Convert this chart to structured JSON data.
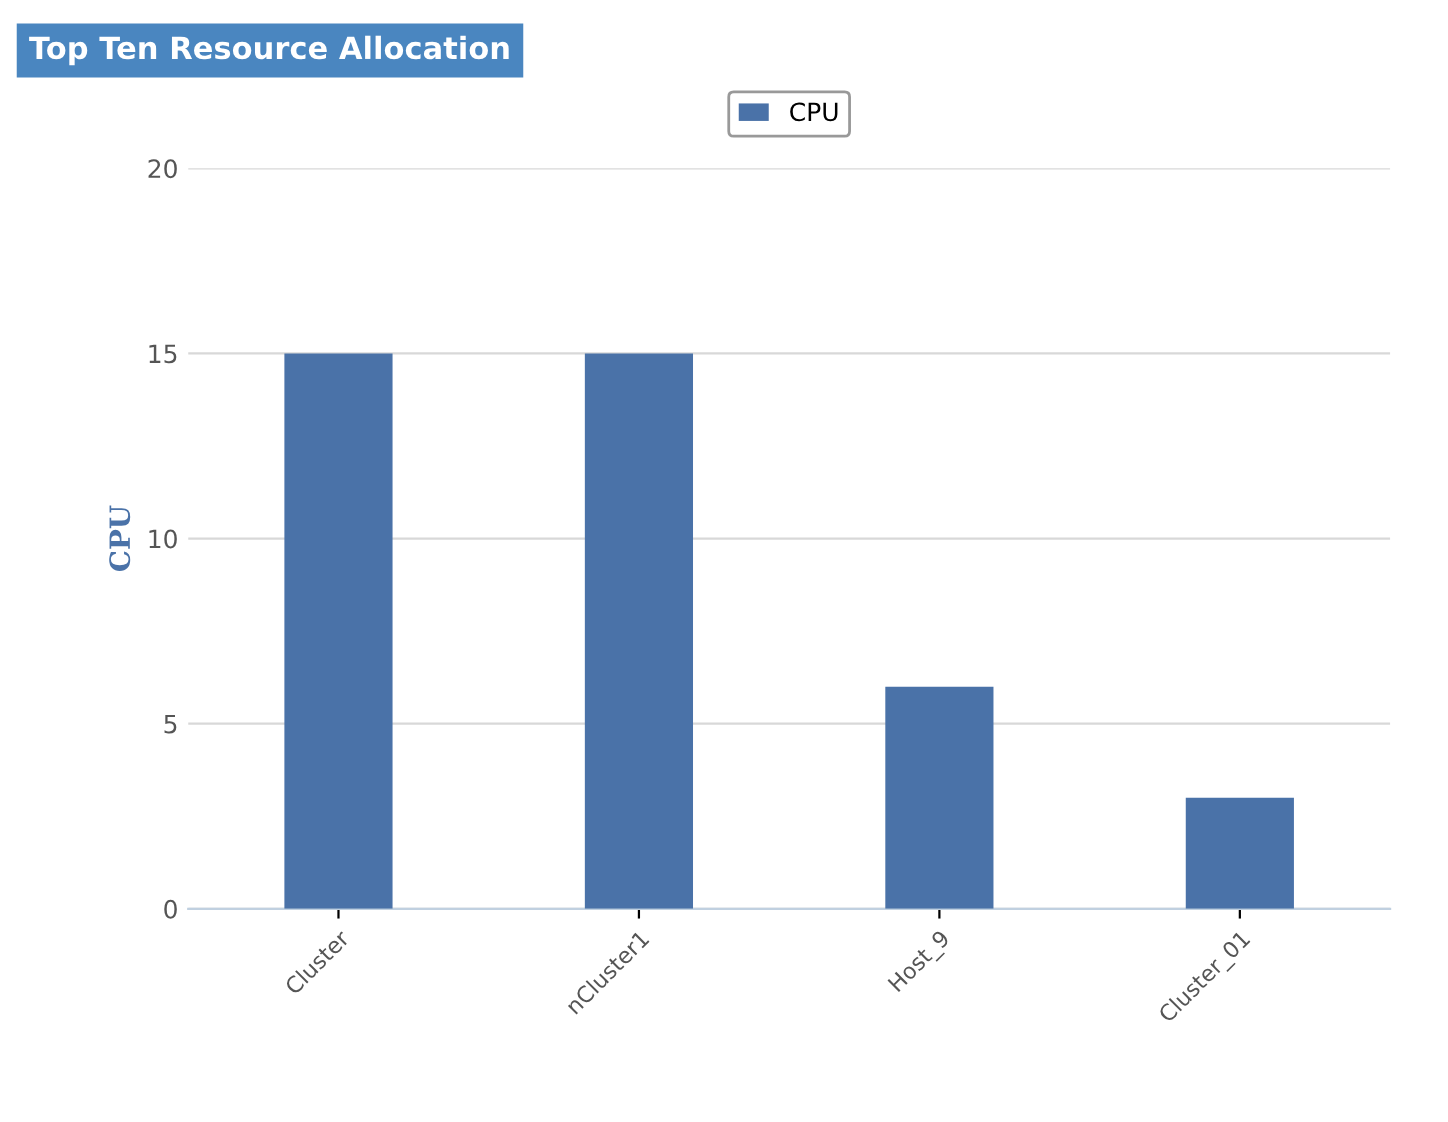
{
  "chart_data": {
    "type": "bar",
    "title": "Top Ten Resource Allocation",
    "ylabel": "CPU",
    "categories": [
      "Cluster",
      "nCluster1",
      "Host_9",
      "Cluster_01"
    ],
    "series": [
      {
        "name": "CPU",
        "color": "#4a72a8",
        "values": [
          15,
          15,
          6,
          3
        ]
      }
    ],
    "ylim": [
      0,
      20
    ],
    "yticks": [
      0,
      5,
      10,
      15,
      20
    ],
    "grid": "y",
    "legend": "top"
  }
}
